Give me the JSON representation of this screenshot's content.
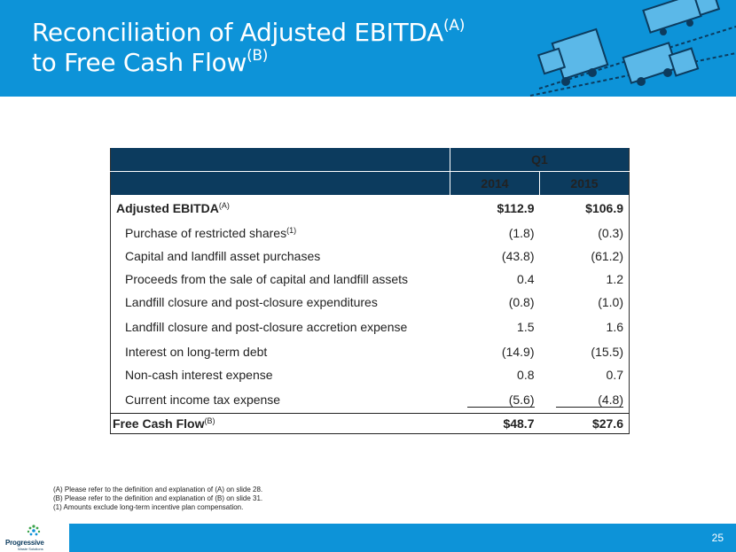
{
  "slide": {
    "title_line1": "Reconciliation of Adjusted EBITDA",
    "title_sup1": "(A)",
    "title_line2": "to Free Cash Flow",
    "title_sup2": "(B)",
    "page_number": "25"
  },
  "table": {
    "period_header": "Q1",
    "years": [
      "2014",
      "2015"
    ],
    "rows": [
      {
        "label": "Adjusted EBITDA",
        "sup": "(A)",
        "v2014": "$112.9",
        "v2015": "$106.9"
      },
      {
        "label": "Purchase of restricted shares",
        "sup": "(1)",
        "v2014": "(1.8)",
        "v2015": "(0.3)"
      },
      {
        "label": "Capital and landfill asset purchases",
        "sup": "",
        "v2014": "(43.8)",
        "v2015": "(61.2)"
      },
      {
        "label": "Proceeds from the sale of capital and landfill assets",
        "sup": "",
        "v2014": "0.4",
        "v2015": "1.2"
      },
      {
        "label": "Landfill closure and post-closure expenditures",
        "sup": "",
        "v2014": "(0.8)",
        "v2015": "(1.0)"
      },
      {
        "label": "Landfill closure and post-closure accretion expense",
        "sup": "",
        "v2014": "1.5",
        "v2015": "1.6"
      },
      {
        "label": "Interest on long-term debt",
        "sup": "",
        "v2014": "(14.9)",
        "v2015": "(15.5)"
      },
      {
        "label": "Non-cash interest expense",
        "sup": "",
        "v2014": "0.8",
        "v2015": "0.7"
      },
      {
        "label": "Current income tax expense",
        "sup": "",
        "v2014": "(5.6)",
        "v2015": "(4.8)"
      },
      {
        "label": "Free Cash Flow",
        "sup": "(B)",
        "v2014": "$48.7",
        "v2015": "$27.6"
      }
    ]
  },
  "footnotes": [
    "(A) Please refer to the definition and explanation of (A) on slide 28.",
    "(B) Please refer to the definition and explanation of (B) on slide 31.",
    "(1) Amounts exclude long-term incentive plan compensation."
  ],
  "logo": {
    "name": "Progressive",
    "tagline": "Waste Solutions"
  },
  "colors": {
    "header_blue": "#0d93d8",
    "table_header_navy": "#0c3b5e"
  },
  "icons": [
    "garbage-truck-icon",
    "progressive-logo-icon"
  ]
}
